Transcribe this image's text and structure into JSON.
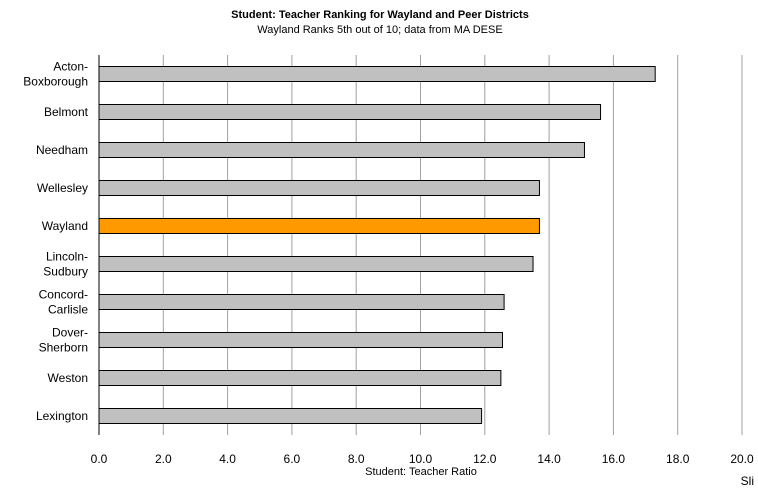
{
  "chart_data": {
    "type": "bar",
    "orientation": "horizontal",
    "title": "Student: Teacher Ranking for Wayland and Peer Districts",
    "subtitle": "Wayland Ranks 5th out of 10; data from MA DESE",
    "xlabel": "Student: Teacher Ratio",
    "ylabel": "",
    "xlim": [
      0,
      20
    ],
    "x_ticks": [
      "0.0",
      "2.0",
      "4.0",
      "6.0",
      "8.0",
      "10.0",
      "12.0",
      "14.0",
      "16.0",
      "18.0",
      "20.0"
    ],
    "grid": "vertical",
    "categories": [
      [
        "Acton-",
        "Boxborough"
      ],
      [
        "Belmont"
      ],
      [
        "Needham"
      ],
      [
        "Wellesley"
      ],
      [
        "Wayland"
      ],
      [
        "Lincoln-",
        "Sudbury"
      ],
      [
        "Concord-",
        "Carlisle"
      ],
      [
        "Dover-",
        "Sherborn"
      ],
      [
        "Weston"
      ],
      [
        "Lexington"
      ]
    ],
    "values": [
      17.3,
      15.6,
      15.1,
      13.7,
      13.7,
      13.5,
      12.6,
      12.55,
      12.5,
      11.9
    ],
    "bar_color": "#c0c0c0",
    "highlight_color": "#ff9900",
    "highlight_index": 4
  },
  "corner_text": "Sli"
}
